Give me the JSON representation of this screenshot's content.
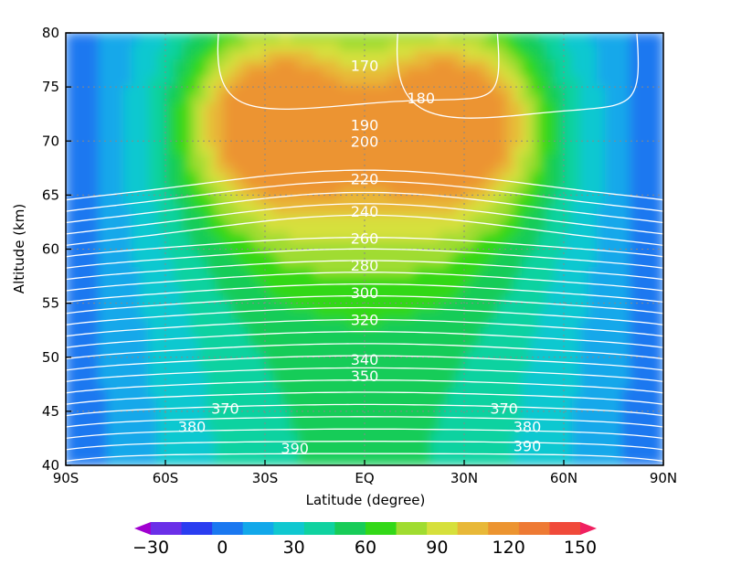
{
  "chart_data": {
    "type": "heatmap",
    "xlabel": "Latitude (degree)",
    "ylabel": "Altitude (km)",
    "xlim": [
      -90,
      90
    ],
    "ylim": [
      40,
      80
    ],
    "x_ticks": [
      {
        "value": -90,
        "label": "90S"
      },
      {
        "value": -60,
        "label": "60S"
      },
      {
        "value": -30,
        "label": "30S"
      },
      {
        "value": 0,
        "label": "EQ"
      },
      {
        "value": 30,
        "label": "30N"
      },
      {
        "value": 60,
        "label": "60N"
      },
      {
        "value": 90,
        "label": "90N"
      }
    ],
    "y_ticks": [
      40,
      45,
      50,
      55,
      60,
      65,
      70,
      75,
      80
    ],
    "grid": true,
    "grid_style": "dotted",
    "colorbar": {
      "orientation": "horizontal",
      "placement": "bottom",
      "levels": [
        -30,
        -15,
        0,
        15,
        30,
        45,
        60,
        75,
        90,
        105,
        120,
        135,
        150
      ],
      "labels": [
        "−30",
        "0",
        "30",
        "60",
        "90",
        "120",
        "150"
      ],
      "label_values": [
        -30,
        0,
        30,
        60,
        90,
        120,
        150
      ],
      "extend": "both",
      "colors": [
        "#a000d0",
        "#6a2fe8",
        "#2a3df0",
        "#1a78f0",
        "#12a8ea",
        "#10c8d0",
        "#10d2a0",
        "#18cc58",
        "#33d818",
        "#a0dc30",
        "#d6e03c",
        "#e8b838",
        "#ec9430",
        "#ee7a34",
        "#f04a3a",
        "#f02060"
      ]
    },
    "filled_contours_description_values": {
      "peak_value_approx": 145,
      "peak_locations": [
        {
          "lat": -30,
          "alt": 72
        },
        {
          "lat": 30,
          "alt": 72
        }
      ],
      "edge_value_approx": 0
    },
    "line_contours": {
      "color": "#ffffff",
      "labels": [
        {
          "text": "170",
          "lat": 0,
          "alt": 77
        },
        {
          "text": "180",
          "lat": 17,
          "alt": 74
        },
        {
          "text": "190",
          "lat": 0,
          "alt": 71.5
        },
        {
          "text": "200",
          "lat": 0,
          "alt": 70
        },
        {
          "text": "220",
          "lat": 0,
          "alt": 66.5
        },
        {
          "text": "240",
          "lat": 0,
          "alt": 63.5
        },
        {
          "text": "260",
          "lat": 0,
          "alt": 61
        },
        {
          "text": "280",
          "lat": 0,
          "alt": 58.5
        },
        {
          "text": "300",
          "lat": 0,
          "alt": 56
        },
        {
          "text": "320",
          "lat": 0,
          "alt": 53.5
        },
        {
          "text": "340",
          "lat": 0,
          "alt": 49.8
        },
        {
          "text": "350",
          "lat": 0,
          "alt": 48.3
        },
        {
          "text": "370",
          "lat": -42,
          "alt": 45.3
        },
        {
          "text": "370",
          "lat": 42,
          "alt": 45.3
        },
        {
          "text": "380",
          "lat": -52,
          "alt": 43.6
        },
        {
          "text": "380",
          "lat": 49,
          "alt": 43.6
        },
        {
          "text": "390",
          "lat": -21,
          "alt": 41.6
        },
        {
          "text": "390",
          "lat": 49,
          "alt": 41.8
        }
      ]
    }
  }
}
